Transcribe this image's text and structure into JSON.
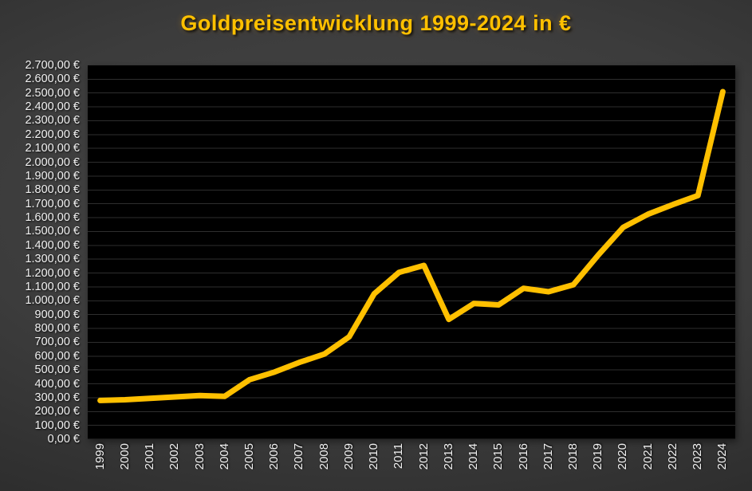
{
  "chart_data": {
    "type": "line",
    "title": "Goldpreisentwicklung 1999-2024 in €",
    "categories": [
      "1999",
      "2000",
      "2001",
      "2002",
      "2003",
      "2004",
      "2005",
      "2006",
      "2007",
      "2008",
      "2009",
      "2010",
      "2011",
      "2012",
      "2013",
      "2014",
      "2015",
      "2016",
      "2017",
      "2018",
      "2019",
      "2020",
      "2021",
      "2022",
      "2023",
      "2024"
    ],
    "values": [
      280,
      285,
      295,
      305,
      315,
      310,
      430,
      485,
      555,
      615,
      740,
      1050,
      1205,
      1255,
      865,
      980,
      970,
      1090,
      1065,
      1115,
      1330,
      1530,
      1625,
      1695,
      1760,
      2510
    ],
    "xlabel": "",
    "ylabel": "",
    "y_axis": {
      "min": 0,
      "max": 2700,
      "step": 100,
      "tick_labels": [
        "2.700,00 €",
        "2.600,00 €",
        "2.500,00 €",
        "2.400,00 €",
        "2.300,00 €",
        "2.200,00 €",
        "2.100,00 €",
        "2.000,00 €",
        "1.900,00 €",
        "1.800,00 €",
        "1.700,00 €",
        "1.600,00 €",
        "1.500,00 €",
        "1.400,00 €",
        "1.300,00 €",
        "1.200,00 €",
        "1.100,00 €",
        "1.000,00 €",
        "900,00 €",
        "800,00 €",
        "700,00 €",
        "600,00 €",
        "500,00 €",
        "400,00 €",
        "300,00 €",
        "200,00 €",
        "100,00 €",
        "0,00 €"
      ]
    },
    "grid": true,
    "legend": false,
    "colors": {
      "line": "#FFC000",
      "title": "#FFC000",
      "plot_background": "#000000",
      "gridline": "#2e2e2e",
      "tick_text": "#f2f2f2"
    }
  }
}
